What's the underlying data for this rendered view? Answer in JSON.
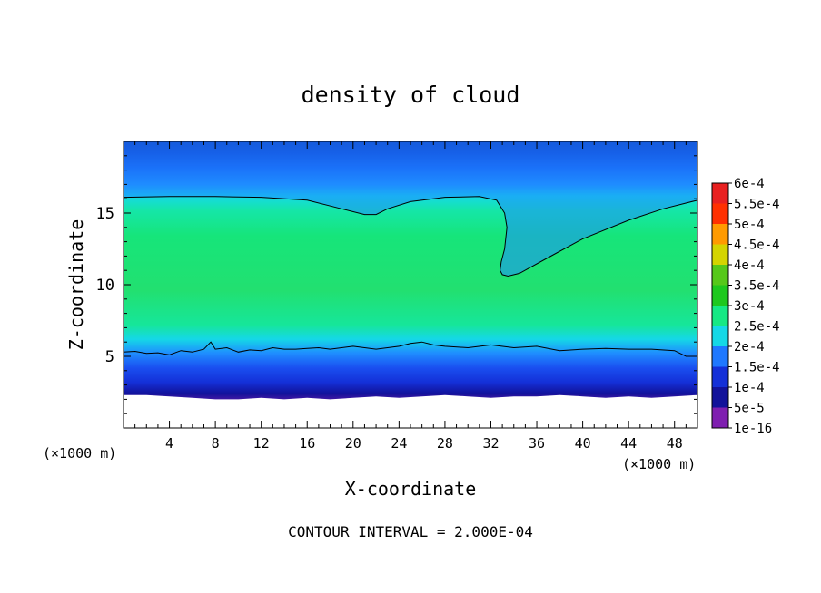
{
  "chart_data": {
    "type": "heatmap",
    "title": "density of cloud",
    "xlabel": "X-coordinate",
    "ylabel": "Z-coordinate",
    "x_unit": "(×1000 m)",
    "z_unit": "(×1000 m)",
    "footer": "CONTOUR INTERVAL = 2.000E-04",
    "xlim": [
      0,
      50
    ],
    "ylim": [
      0,
      20
    ],
    "x_ticks": [
      4,
      8,
      12,
      16,
      20,
      24,
      28,
      32,
      36,
      40,
      44,
      48
    ],
    "y_ticks": [
      5,
      10,
      15
    ],
    "colorbar": {
      "labels": [
        "1e-16",
        "5e-5",
        "1e-4",
        "1.5e-4",
        "2e-4",
        "2.5e-4",
        "3e-4",
        "3.5e-4",
        "4e-4",
        "4.5e-4",
        "5e-4",
        "5.5e-4",
        "6e-4"
      ],
      "colors": [
        "#7f1fb0",
        "#12129a",
        "#1430d8",
        "#1f78ff",
        "#15d8e6",
        "#16e884",
        "#1ec81e",
        "#56c81a",
        "#d4d400",
        "#ff9a00",
        "#ff3000",
        "#e82020",
        "#f07a8a"
      ]
    },
    "contour_2e-4": {
      "upper": {
        "x": [
          0,
          4,
          8,
          12,
          16,
          19,
          21,
          22,
          23,
          25,
          28,
          31,
          32.5,
          33.2,
          33.4,
          33.2,
          32.9,
          32.8,
          33,
          33.5,
          34.5,
          37,
          40,
          44,
          47,
          50
        ],
        "z": [
          16.1,
          16.15,
          16.15,
          16.1,
          15.9,
          15.3,
          14.9,
          14.9,
          15.3,
          15.8,
          16.1,
          16.15,
          15.9,
          15.0,
          14.0,
          12.5,
          11.6,
          11.0,
          10.7,
          10.6,
          10.8,
          11.9,
          13.2,
          14.5,
          15.3,
          15.9
        ]
      },
      "lower": {
        "x": [
          0,
          1,
          2,
          3,
          4,
          5,
          6,
          7,
          7.6,
          8,
          9,
          10,
          11,
          12,
          13,
          14,
          15,
          16,
          17,
          18,
          20,
          22,
          24,
          25,
          26,
          27,
          28,
          30,
          32,
          34,
          36,
          38,
          40,
          42,
          44,
          46,
          48,
          49,
          50
        ],
        "z": [
          5.3,
          5.35,
          5.2,
          5.25,
          5.1,
          5.4,
          5.3,
          5.5,
          6.0,
          5.5,
          5.6,
          5.3,
          5.45,
          5.4,
          5.6,
          5.5,
          5.5,
          5.55,
          5.6,
          5.5,
          5.7,
          5.5,
          5.7,
          5.9,
          6.0,
          5.8,
          5.7,
          5.6,
          5.8,
          5.6,
          5.7,
          5.4,
          5.5,
          5.55,
          5.5,
          5.5,
          5.4,
          5.0,
          5.0
        ]
      }
    },
    "cloud_base": {
      "x": [
        0,
        2,
        4,
        6,
        8,
        10,
        12,
        14,
        16,
        18,
        20,
        22,
        24,
        26,
        28,
        30,
        32,
        34,
        36,
        38,
        40,
        42,
        44,
        46,
        48,
        50
      ],
      "z": [
        2.3,
        2.3,
        2.2,
        2.1,
        2.0,
        2.0,
        2.1,
        2.0,
        2.1,
        2.0,
        2.1,
        2.2,
        2.1,
        2.2,
        2.3,
        2.2,
        2.1,
        2.2,
        2.2,
        2.3,
        2.2,
        2.1,
        2.2,
        2.1,
        2.2,
        2.3
      ]
    }
  }
}
